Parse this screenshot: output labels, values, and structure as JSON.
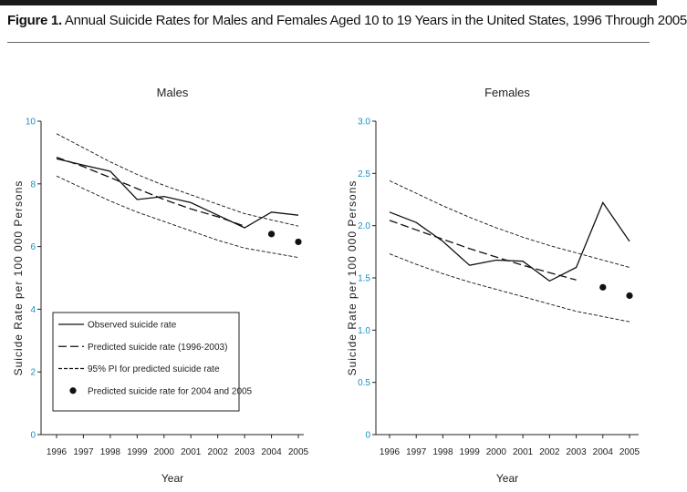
{
  "figure": {
    "label": "Figure 1.",
    "title": "Annual Suicide Rates for Males and Females Aged 10 to 19 Years in the United States, 1996 Through 2005"
  },
  "legend": {
    "observed": "Observed suicide rate",
    "predicted": "Predicted suicide rate (1996-2003)",
    "pi": "95% PI for predicted suicide rate",
    "points": "Predicted suicide rate for 2004 and 2005"
  },
  "chart_data": [
    {
      "type": "line",
      "title": "Males",
      "xlabel": "Year",
      "ylabel": "Suicide Rate per 100 000 Persons",
      "x": [
        1996,
        1997,
        1998,
        1999,
        2000,
        2001,
        2002,
        2003,
        2004,
        2005
      ],
      "ylim": [
        0,
        10
      ],
      "yticks": [
        0,
        2,
        4,
        6,
        8,
        10
      ],
      "ytick_labels": [
        "0",
        "2",
        "4",
        "6",
        "8",
        "10"
      ],
      "series": [
        {
          "name": "Observed suicide rate",
          "x": [
            1996,
            1997,
            1998,
            1999,
            2000,
            2001,
            2002,
            2003,
            2004,
            2005
          ],
          "values": [
            8.8,
            8.6,
            8.4,
            7.5,
            7.6,
            7.4,
            7.0,
            6.6,
            7.1,
            7.0
          ]
        },
        {
          "name": "Predicted suicide rate (1996-2003)",
          "x": [
            1996,
            1997,
            1998,
            1999,
            2000,
            2001,
            2002,
            2003
          ],
          "values": [
            8.85,
            8.55,
            8.2,
            7.85,
            7.5,
            7.2,
            6.95,
            6.65
          ]
        },
        {
          "name": "95% PI upper",
          "x": [
            1996,
            1997,
            1998,
            1999,
            2000,
            2001,
            2002,
            2003,
            2004,
            2005
          ],
          "values": [
            9.6,
            9.15,
            8.7,
            8.3,
            7.95,
            7.65,
            7.35,
            7.05,
            6.85,
            6.65
          ]
        },
        {
          "name": "95% PI lower",
          "x": [
            1996,
            1997,
            1998,
            1999,
            2000,
            2001,
            2002,
            2003,
            2004,
            2005
          ],
          "values": [
            8.25,
            7.85,
            7.45,
            7.1,
            6.8,
            6.5,
            6.2,
            5.95,
            5.8,
            5.65
          ]
        },
        {
          "name": "Predicted suicide rate for 2004 and 2005",
          "x": [
            2004,
            2005
          ],
          "values": [
            6.4,
            6.15
          ]
        }
      ]
    },
    {
      "type": "line",
      "title": "Females",
      "xlabel": "Year",
      "ylabel": "Suicide Rate per 100 000 Persons",
      "x": [
        1996,
        1997,
        1998,
        1999,
        2000,
        2001,
        2002,
        2003,
        2004,
        2005
      ],
      "ylim": [
        0,
        3.0
      ],
      "yticks": [
        0,
        0.5,
        1.0,
        1.5,
        2.0,
        2.5,
        3.0
      ],
      "ytick_labels": [
        "0",
        "0.5",
        "1.0",
        "1.5",
        "2.0",
        "2.5",
        "3.0"
      ],
      "series": [
        {
          "name": "Observed suicide rate",
          "x": [
            1996,
            1997,
            1998,
            1999,
            2000,
            2001,
            2002,
            2003,
            2004,
            2005
          ],
          "values": [
            2.13,
            2.03,
            1.85,
            1.62,
            1.67,
            1.66,
            1.47,
            1.6,
            2.22,
            1.85
          ]
        },
        {
          "name": "Predicted suicide rate (1996-2003)",
          "x": [
            1996,
            1997,
            1998,
            1999,
            2000,
            2001,
            2002,
            2003
          ],
          "values": [
            2.05,
            1.96,
            1.87,
            1.78,
            1.7,
            1.62,
            1.55,
            1.48
          ]
        },
        {
          "name": "95% PI upper",
          "x": [
            1996,
            1997,
            1998,
            1999,
            2000,
            2001,
            2002,
            2003,
            2004,
            2005
          ],
          "values": [
            2.43,
            2.31,
            2.19,
            2.08,
            1.98,
            1.89,
            1.81,
            1.74,
            1.67,
            1.6
          ]
        },
        {
          "name": "95% PI lower",
          "x": [
            1996,
            1997,
            1998,
            1999,
            2000,
            2001,
            2002,
            2003,
            2004,
            2005
          ],
          "values": [
            1.73,
            1.63,
            1.54,
            1.46,
            1.39,
            1.32,
            1.25,
            1.18,
            1.13,
            1.08
          ]
        },
        {
          "name": "Predicted suicide rate for 2004 and 2005",
          "x": [
            2004,
            2005
          ],
          "values": [
            1.41,
            1.33
          ]
        }
      ]
    }
  ]
}
